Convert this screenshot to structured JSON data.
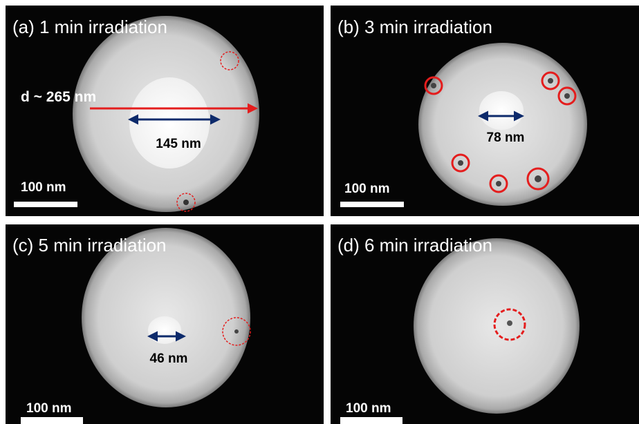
{
  "panels": [
    {
      "title": "(a) 1 min irradiation",
      "scale_bar": "100 nm",
      "annotations": [
        "d ~ 265 nm",
        "145 nm"
      ]
    },
    {
      "title": "(b) 3 min irradiation",
      "scale_bar": "100 nm",
      "annotations": [
        "78 nm"
      ]
    },
    {
      "title": "(c) 5 min irradiation",
      "scale_bar": "100 nm",
      "annotations": [
        "46 nm"
      ]
    },
    {
      "title": "(d) 6 min irradiation",
      "scale_bar": "100 nm",
      "annotations": []
    }
  ]
}
